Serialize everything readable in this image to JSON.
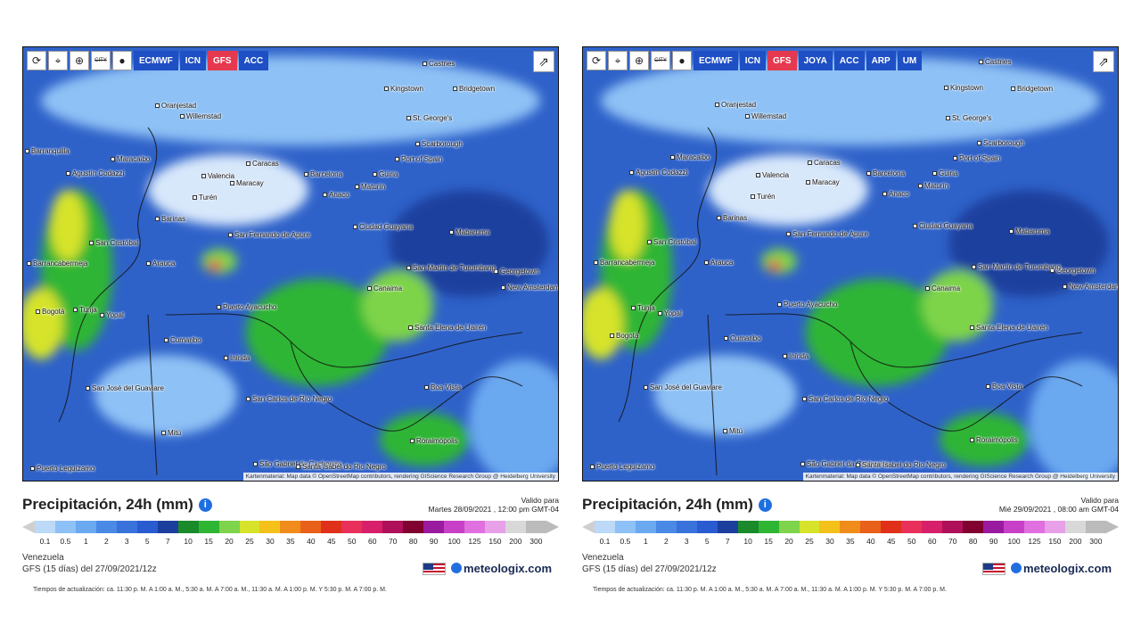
{
  "panels": [
    {
      "toolbar": {
        "icons": [
          "refresh-icon",
          "pin-icon",
          "zoom-icon",
          "city-icon",
          "dot-icon"
        ],
        "city_label": "CITY",
        "models": [
          "ECMWF",
          "ICN",
          "GFS",
          "ACC"
        ],
        "active_model": "GFS"
      },
      "attribution": "Kartenmaterial: Map data © OpenStreetMap contributors, rendering GIScience Research Group @ Heidelberg University",
      "cities": [
        "Castries",
        "Kingstown",
        "Bridgetown",
        "St. George's",
        "Oranjestad",
        "Willemstad",
        "Scarborough",
        "Port of Spain",
        "Barranquilla",
        "Maracaibo",
        "Caracas",
        "Barcelona",
        "Güiria",
        "Agustín Codazzi",
        "Valencia",
        "Maracay",
        "Maturín",
        "Anaco",
        "Turén",
        "Barinas",
        "Ciudad Guayana",
        "Mabaruma",
        "San Cristóbal",
        "San Fernando de Apure",
        "Georgetown",
        "Barrancabermeja",
        "Arauca",
        "San Martín de Turumbang",
        "New Amsterdam",
        "Canaima",
        "Puerto Ayacucho",
        "Tunja",
        "Yopal",
        "Santa Elena de Uairén",
        "Bogotá",
        "Cumaribo",
        "Inírida",
        "San José del Guaviare",
        "Boa Vista",
        "San Carlos de Río Negro",
        "Mitú",
        "Roraimópolis",
        "Puerto Leguízamo",
        "São Gabriel da Cachoeira",
        "Santa Isabel do Rio Negro"
      ],
      "title": "Precipitación, 24h (mm)",
      "valid_label": "Valido para",
      "valid_date": "Martes 28/09/2021 , 12:00 pm GMT-04",
      "region": "Venezuela",
      "model_run": "GFS (15 días) del 27/09/2021/12z",
      "brand": "meteologix.com",
      "updates": "Tiempos de actualización: ca. 11:30 p. M. A 1:00 a. M., 5:30 a. M. A 7:00 a. M., 11:30 a. M. A 1:00 p. M. Y 5:30 p. M. A 7:00 p. M."
    },
    {
      "toolbar": {
        "icons": [
          "refresh-icon",
          "pin-icon",
          "zoom-icon",
          "city-icon",
          "dot-icon"
        ],
        "city_label": "CITY",
        "models": [
          "ECMWF",
          "ICN",
          "GFS",
          "JOYA",
          "ACC",
          "ARP",
          "UM"
        ],
        "active_model": "GFS"
      },
      "attribution": "Kartenmaterial: Map data © OpenStreetMap contributors, rendering GIScience Research Group @ Heidelberg University",
      "cities": [
        "Castries",
        "Kingstown",
        "Bridgetown",
        "St. George's",
        "Oranjestad",
        "Willemstad",
        "Scarborough",
        "Port of Spain",
        "Maracaibo",
        "Caracas",
        "Barcelona",
        "Güiria",
        "Agustín Codazzi",
        "Valencia",
        "Maracay",
        "Maturín",
        "Anaco",
        "Turén",
        "Barinas",
        "Ciudad Guayana",
        "Mabaruma",
        "San Cristóbal",
        "San Fernando de Apure",
        "Georgetown",
        "Barrancabermeja",
        "Arauca",
        "San Martín de Turumbang",
        "New Amsterdam",
        "Canaima",
        "Puerto Ayacucho",
        "Tunja",
        "Yopal",
        "Santa Elena de Uairén",
        "Bogotá",
        "Cumaribo",
        "Inírida",
        "San José del Guaviare",
        "Boa Vista",
        "San Carlos de Río Negro",
        "Mitú",
        "Roraimópolis",
        "Puerto Leguízamo",
        "São Gabriel da Cachoeira",
        "Santa Isabel do Rio Negro"
      ],
      "title": "Precipitación, 24h (mm)",
      "valid_label": "Valido para",
      "valid_date": "Mié 29/09/2021 , 08:00 am GMT-04",
      "region": "Venezuela",
      "model_run": "GFS (15 días) del 27/09/2021/12z",
      "brand": "meteologix.com",
      "updates": "Tiempos de actualización: ca. 11:30 p. M. A 1:00 a. M., 5:30 a. M. A 7:00 a. M., 11:30 a. M. A 1:00 p. M. Y 5:30 p. M. A 7:00 p. M."
    }
  ],
  "legend": {
    "ticks": [
      "0.1",
      "0.5",
      "1",
      "2",
      "3",
      "5",
      "7",
      "10",
      "15",
      "20",
      "25",
      "30",
      "35",
      "40",
      "45",
      "50",
      "60",
      "70",
      "80",
      "90",
      "100",
      "125",
      "150",
      "200",
      "300"
    ],
    "colors": [
      "#bcd9f7",
      "#8ec1f5",
      "#6aa8f0",
      "#4a8ae6",
      "#3a72dc",
      "#2a5bd0",
      "#1c3f9e",
      "#1a8a2a",
      "#2fb534",
      "#7ed44a",
      "#d6e32a",
      "#f3c11a",
      "#f08c1a",
      "#e8601a",
      "#e0301a",
      "#e8305a",
      "#d8206a",
      "#b0105a",
      "#800030",
      "#9a1aa0",
      "#c840c8",
      "#e070e0",
      "#e8a0e8",
      "#d8d8d8",
      "#bbbbbb"
    ]
  }
}
